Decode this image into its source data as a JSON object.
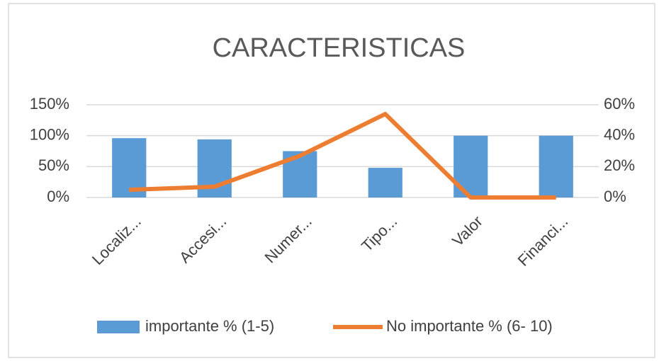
{
  "chart_data": {
    "type": "combo",
    "title": "CARACTERISTICAS",
    "categories": [
      "Localiz...",
      "Accesi...",
      "Numer...",
      "Tipo...",
      "Valor",
      "Financi..."
    ],
    "series": [
      {
        "name": "importante % (1-5)",
        "type": "bar",
        "color": "#5b9bd5",
        "values": [
          96,
          94,
          75,
          48,
          100,
          100
        ]
      },
      {
        "name": "No importante % (6- 10)",
        "type": "line",
        "axis": "y2",
        "color": "#ed7d31",
        "values": [
          5,
          7,
          27,
          54,
          0,
          0
        ]
      }
    ],
    "ylim": [
      0,
      150
    ],
    "yticks": [
      {
        "value": 0,
        "label": "0%"
      },
      {
        "value": 50,
        "label": "50%"
      },
      {
        "value": 100,
        "label": "100%"
      },
      {
        "value": 150,
        "label": "150%"
      }
    ],
    "y2lim": [
      0,
      60
    ],
    "y2ticks": [
      {
        "value": 0,
        "label": "0%"
      },
      {
        "value": 20,
        "label": "20%"
      },
      {
        "value": 40,
        "label": "40%"
      },
      {
        "value": 60,
        "label": "60%"
      }
    ],
    "grid": true,
    "legend": "bottom"
  }
}
